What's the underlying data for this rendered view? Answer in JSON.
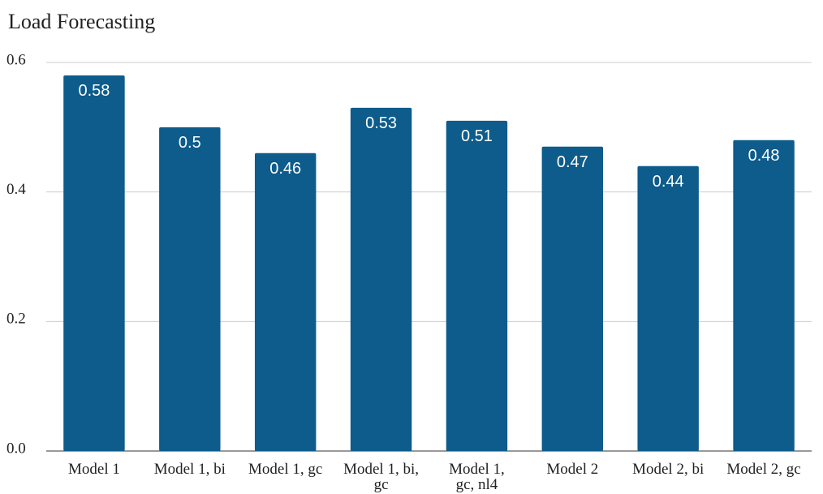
{
  "chart_data": {
    "type": "bar",
    "title": "Load Forecasting",
    "categories": [
      "Model 1",
      "Model 1, bi",
      "Model 1, gc",
      "Model 1, bi, gc",
      "Model 1, gc, nl4",
      "Model 2",
      "Model 2, bi",
      "Model 2, gc"
    ],
    "values": [
      0.58,
      0.5,
      0.46,
      0.53,
      0.51,
      0.47,
      0.44,
      0.48
    ],
    "color": "#0d5c8b",
    "ylim": [
      0,
      0.6
    ],
    "yticks": [
      {
        "value": 0,
        "label": "0.0"
      },
      0.2,
      0.4,
      0.6
    ],
    "grid": true
  }
}
